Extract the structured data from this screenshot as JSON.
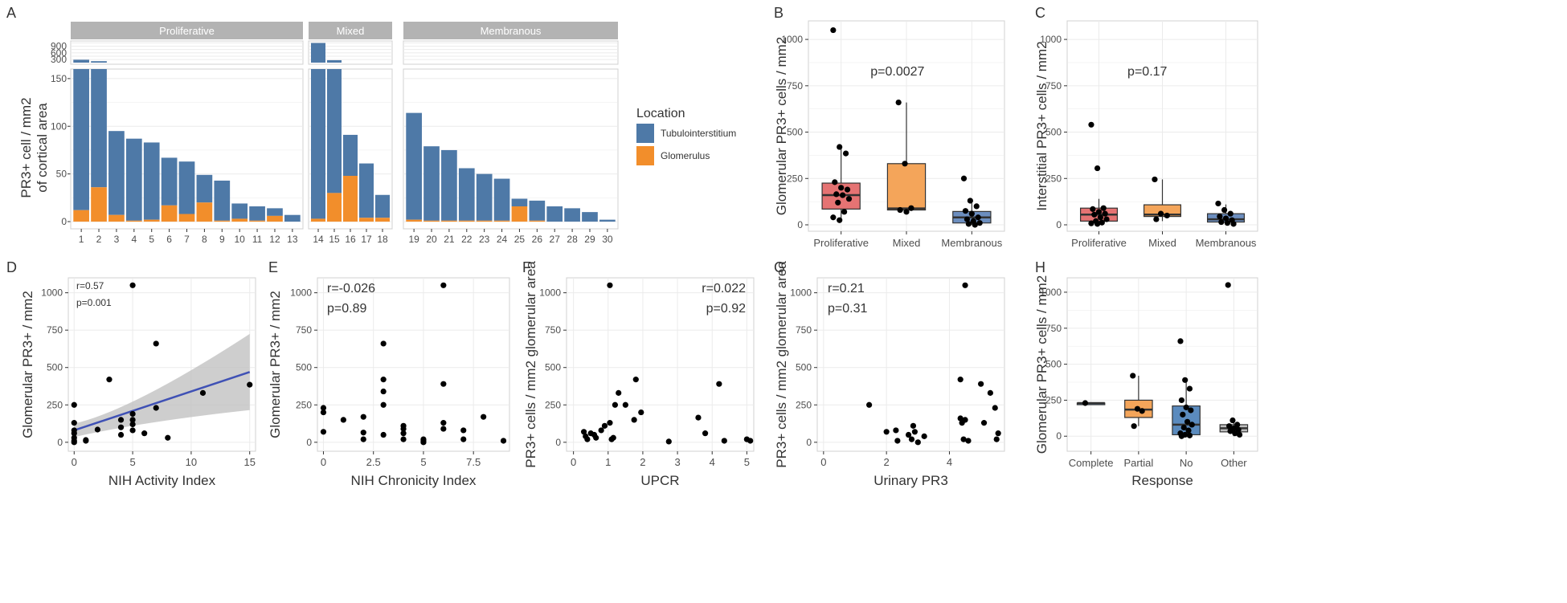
{
  "chart_data": [
    {
      "panel": "A",
      "type": "bar",
      "ylabel_lines": [
        "PR3+ cell / mm2",
        "of cortical area"
      ],
      "facets": [
        "Proliferative",
        "Mixed",
        "Membranous"
      ],
      "yticks_top": [
        "900",
        "600",
        "300"
      ],
      "yticks_main": [
        "0",
        "50",
        "100",
        "150"
      ],
      "legend": {
        "title": "Location",
        "items": [
          {
            "name": "Tubulointerstitium",
            "color": "#4E79A7"
          },
          {
            "name": "Glomerulus",
            "color": "#F28E2B"
          }
        ]
      },
      "groups": [
        {
          "facet": "Proliferative",
          "bars": [
            {
              "x": "1",
              "total": 290,
              "glom": 12
            },
            {
              "x": "2",
              "total": 225,
              "glom": 36
            },
            {
              "x": "3",
              "total": 95,
              "glom": 7
            },
            {
              "x": "4",
              "total": 87,
              "glom": 1
            },
            {
              "x": "5",
              "total": 83,
              "glom": 2
            },
            {
              "x": "6",
              "total": 67,
              "glom": 17
            },
            {
              "x": "7",
              "total": 63,
              "glom": 8
            },
            {
              "x": "8",
              "total": 49,
              "glom": 20
            },
            {
              "x": "9",
              "total": 43,
              "glom": 1
            },
            {
              "x": "10",
              "total": 19,
              "glom": 3
            },
            {
              "x": "11",
              "total": 16,
              "glom": 1
            },
            {
              "x": "12",
              "total": 14,
              "glom": 6
            },
            {
              "x": "13",
              "total": 7,
              "glom": 0
            }
          ]
        },
        {
          "facet": "Mixed",
          "bars": [
            {
              "x": "14",
              "total": 1045,
              "glom": 3
            },
            {
              "x": "15",
              "total": 270,
              "glom": 30
            },
            {
              "x": "16",
              "total": 91,
              "glom": 48
            },
            {
              "x": "17",
              "total": 61,
              "glom": 4
            },
            {
              "x": "18",
              "total": 28,
              "glom": 4
            }
          ]
        },
        {
          "facet": "Membranous",
          "bars": [
            {
              "x": "19",
              "total": 114,
              "glom": 2
            },
            {
              "x": "20",
              "total": 79,
              "glom": 1
            },
            {
              "x": "21",
              "total": 75,
              "glom": 1
            },
            {
              "x": "22",
              "total": 56,
              "glom": 1
            },
            {
              "x": "23",
              "total": 50,
              "glom": 1
            },
            {
              "x": "24",
              "total": 45,
              "glom": 1
            },
            {
              "x": "25",
              "total": 24,
              "glom": 16
            },
            {
              "x": "26",
              "total": 22,
              "glom": 1
            },
            {
              "x": "27",
              "total": 16,
              "glom": 0
            },
            {
              "x": "28",
              "total": 14,
              "glom": 0
            },
            {
              "x": "29",
              "total": 10,
              "glom": 0
            },
            {
              "x": "30",
              "total": 2,
              "glom": 0
            }
          ]
        }
      ]
    },
    {
      "panel": "B",
      "type": "box",
      "ylabel": "Glomerular PR3+ cells / mm2",
      "ylim": [
        0,
        1100
      ],
      "yticks": [
        "0",
        "250",
        "500",
        "750",
        "1000"
      ],
      "annotation": "p=0.0027",
      "groups": [
        {
          "name": "Proliferative",
          "color": "#E57373",
          "q1": 85,
          "median": 160,
          "q3": 225,
          "wlo": 20,
          "whi": 420,
          "points": [
            1050,
            420,
            385,
            230,
            200,
            190,
            165,
            160,
            140,
            120,
            70,
            40,
            25
          ]
        },
        {
          "name": "Mixed",
          "color": "#F4A55A",
          "q1": 80,
          "median": 88,
          "q3": 330,
          "wlo": 70,
          "whi": 660,
          "points": [
            660,
            330,
            90,
            80,
            70
          ]
        },
        {
          "name": "Membranous",
          "color": "#6C8EBF",
          "q1": 10,
          "median": 40,
          "q3": 72,
          "wlo": 0,
          "whi": 130,
          "points": [
            250,
            130,
            100,
            75,
            60,
            40,
            30,
            20,
            10,
            5,
            0
          ]
        }
      ]
    },
    {
      "panel": "C",
      "type": "box",
      "ylabel": "Interstitial PR3+ cells / mm2",
      "ylim": [
        0,
        1100
      ],
      "yticks": [
        "0",
        "250",
        "500",
        "750",
        "1000"
      ],
      "annotation": "p=0.17",
      "groups": [
        {
          "name": "Proliferative",
          "color": "#E57373",
          "q1": 20,
          "median": 55,
          "q3": 90,
          "wlo": 0,
          "whi": 140,
          "points": [
            540,
            305,
            90,
            85,
            70,
            60,
            55,
            40,
            30,
            20,
            12,
            8,
            5
          ]
        },
        {
          "name": "Mixed",
          "color": "#F4A55A",
          "q1": 45,
          "median": 55,
          "q3": 108,
          "wlo": 20,
          "whi": 245,
          "points": [
            245,
            60,
            50,
            30
          ]
        },
        {
          "name": "Membranous",
          "color": "#6C8EBF",
          "q1": 15,
          "median": 30,
          "q3": 60,
          "wlo": 0,
          "whi": 110,
          "points": [
            115,
            80,
            60,
            45,
            35,
            25,
            15,
            10,
            5
          ]
        }
      ]
    },
    {
      "panel": "D",
      "type": "scatter",
      "xlabel": "NIH Activity Index",
      "ylabel": "Glomerular PR3+ / mm2",
      "xlim": [
        -0.5,
        15.5
      ],
      "ylim": [
        -60,
        1100
      ],
      "xticks": [
        0,
        5,
        10,
        15
      ],
      "yticks": [
        0,
        250,
        500,
        750,
        1000
      ],
      "annotation": [
        "r=0.57",
        "p=0.001"
      ],
      "fit": {
        "x": [
          0,
          15
        ],
        "y": [
          80,
          470
        ],
        "ci_lo_end": [
          35,
          215
        ],
        "ci_hi_end": [
          125,
          725
        ]
      },
      "points": [
        [
          0,
          250
        ],
        [
          0,
          130
        ],
        [
          0,
          80
        ],
        [
          0,
          60
        ],
        [
          0,
          30
        ],
        [
          0,
          10
        ],
        [
          0,
          0
        ],
        [
          1,
          15
        ],
        [
          1,
          10
        ],
        [
          2,
          85
        ],
        [
          3,
          420
        ],
        [
          4,
          150
        ],
        [
          4,
          100
        ],
        [
          4,
          50
        ],
        [
          5,
          1050
        ],
        [
          5,
          190
        ],
        [
          5,
          150
        ],
        [
          5,
          120
        ],
        [
          5,
          80
        ],
        [
          6,
          60
        ],
        [
          7,
          660
        ],
        [
          7,
          230
        ],
        [
          8,
          30
        ],
        [
          11,
          330
        ],
        [
          15,
          385
        ]
      ]
    },
    {
      "panel": "E",
      "type": "scatter",
      "xlabel": "NIH Chronicity Index",
      "ylabel": "Glomerular PR3+ / mm2",
      "xlim": [
        -0.3,
        9.3
      ],
      "ylim": [
        -60,
        1100
      ],
      "xticks": [
        0,
        2.5,
        5,
        7.5
      ],
      "yticks": [
        0,
        250,
        500,
        750,
        1000
      ],
      "annotation": [
        "r=-0.026",
        "p=0.89"
      ],
      "points": [
        [
          0,
          230
        ],
        [
          0,
          200
        ],
        [
          0,
          70
        ],
        [
          1,
          150
        ],
        [
          2,
          170
        ],
        [
          2,
          65
        ],
        [
          2,
          20
        ],
        [
          3,
          660
        ],
        [
          3,
          420
        ],
        [
          3,
          340
        ],
        [
          3,
          250
        ],
        [
          3,
          50
        ],
        [
          4,
          110
        ],
        [
          4,
          90
        ],
        [
          4,
          60
        ],
        [
          4,
          20
        ],
        [
          5,
          20
        ],
        [
          5,
          10
        ],
        [
          5,
          0
        ],
        [
          6,
          1050
        ],
        [
          6,
          390
        ],
        [
          6,
          130
        ],
        [
          6,
          90
        ],
        [
          7,
          80
        ],
        [
          7,
          20
        ],
        [
          8,
          170
        ],
        [
          9,
          10
        ]
      ]
    },
    {
      "panel": "F",
      "type": "scatter",
      "xlabel": "UPCR",
      "ylabel": "PR3+ cells / mm2 glomerular area",
      "xlim": [
        -0.2,
        5.2
      ],
      "ylim": [
        -60,
        1100
      ],
      "xticks": [
        0,
        1,
        2,
        3,
        4,
        5
      ],
      "yticks": [
        0,
        250,
        500,
        750,
        1000
      ],
      "annotation": [
        "r=0.022",
        "p=0.92"
      ],
      "points": [
        [
          0.3,
          70
        ],
        [
          0.35,
          40
        ],
        [
          0.4,
          20
        ],
        [
          0.5,
          60
        ],
        [
          0.6,
          50
        ],
        [
          0.65,
          30
        ],
        [
          0.8,
          80
        ],
        [
          0.9,
          110
        ],
        [
          1.05,
          1050
        ],
        [
          1.05,
          130
        ],
        [
          1.1,
          20
        ],
        [
          1.15,
          30
        ],
        [
          1.2,
          250
        ],
        [
          1.3,
          330
        ],
        [
          1.5,
          250
        ],
        [
          1.75,
          150
        ],
        [
          1.8,
          420
        ],
        [
          1.95,
          200
        ],
        [
          2.75,
          5
        ],
        [
          3.6,
          165
        ],
        [
          3.8,
          60
        ],
        [
          4.2,
          390
        ],
        [
          4.35,
          10
        ],
        [
          5.0,
          20
        ],
        [
          5.1,
          10
        ]
      ]
    },
    {
      "panel": "G",
      "type": "scatter",
      "xlabel": "Urinary PR3",
      "ylabel": "PR3+ cells / mm2 glomerular area",
      "xlim": [
        -0.2,
        5.75
      ],
      "ylim": [
        -60,
        1100
      ],
      "xticks": [
        0,
        2,
        4
      ],
      "yticks": [
        0,
        250,
        500,
        750,
        1000
      ],
      "annotation": [
        "r=0.21",
        "p=0.31"
      ],
      "points": [
        [
          1.45,
          250
        ],
        [
          2.0,
          70
        ],
        [
          2.3,
          80
        ],
        [
          2.35,
          10
        ],
        [
          2.7,
          50
        ],
        [
          2.8,
          20
        ],
        [
          2.85,
          110
        ],
        [
          2.9,
          70
        ],
        [
          3.0,
          0
        ],
        [
          3.2,
          40
        ],
        [
          4.35,
          420
        ],
        [
          4.35,
          160
        ],
        [
          4.4,
          130
        ],
        [
          4.45,
          20
        ],
        [
          4.5,
          1050
        ],
        [
          4.5,
          150
        ],
        [
          4.6,
          10
        ],
        [
          5.0,
          390
        ],
        [
          5.1,
          130
        ],
        [
          5.3,
          330
        ],
        [
          5.45,
          230
        ],
        [
          5.5,
          20
        ],
        [
          5.55,
          60
        ]
      ]
    },
    {
      "panel": "H",
      "type": "box",
      "xlabel": "Response",
      "ylabel": "Glomerular PR3+ cells / mm2",
      "ylim": [
        -60,
        1100
      ],
      "yticks": [
        "0",
        "250",
        "500",
        "750",
        "1000"
      ],
      "groups": [
        {
          "name": "Complete",
          "color": "#5B8BBE",
          "q1": 230,
          "median": 230,
          "q3": 230,
          "wlo": 230,
          "whi": 230,
          "points": [
            230
          ]
        },
        {
          "name": "Partial",
          "color": "#F4A55A",
          "q1": 130,
          "median": 185,
          "q3": 250,
          "wlo": 70,
          "whi": 420,
          "points": [
            420,
            190,
            175,
            70
          ]
        },
        {
          "name": "No",
          "color": "#5B8BBE",
          "q1": 10,
          "median": 80,
          "q3": 210,
          "wlo": 0,
          "whi": 400,
          "points": [
            660,
            390,
            330,
            250,
            200,
            180,
            150,
            100,
            80,
            60,
            40,
            20,
            10,
            5,
            0
          ]
        },
        {
          "name": "Other",
          "color": "#BDBDBD",
          "q1": 30,
          "median": 55,
          "q3": 80,
          "wlo": 0,
          "whi": 110,
          "points": [
            1050,
            110,
            80,
            70,
            55,
            45,
            35,
            20,
            10
          ]
        }
      ]
    }
  ],
  "panel_letters": [
    "A",
    "B",
    "C",
    "D",
    "E",
    "F",
    "G",
    "H"
  ],
  "colors": {
    "tubulo": "#4E79A7",
    "glom": "#F28E2B",
    "fit_line": "#3F51B5",
    "ci_band": "#BDBDBD",
    "strip": "#B3B3B3",
    "grid": "#EBEBEB",
    "panel_border": "#D0D0D0",
    "text": "#333333",
    "tick_text": "#4D4D4D"
  }
}
